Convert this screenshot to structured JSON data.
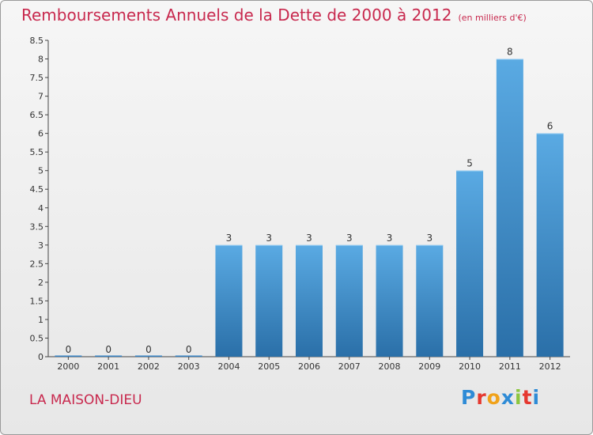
{
  "title": "Remboursements Annuels de la Dette de 2000 à 2012",
  "unit": "(en milliers d'€)",
  "footer": {
    "city": "LA MAISON-DIEU",
    "brand": "Proxiti"
  },
  "colors": {
    "title": "#c8294e",
    "bar_top": "#5aaae3",
    "bar_bottom": "#2a6fa8"
  },
  "chart_data": {
    "type": "bar",
    "title": "Remboursements Annuels de la Dette de 2000 à 2012",
    "subtitle": "(en milliers d'€)",
    "xlabel": "",
    "ylabel": "",
    "categories": [
      "2000",
      "2001",
      "2002",
      "2003",
      "2004",
      "2005",
      "2006",
      "2007",
      "2008",
      "2009",
      "2010",
      "2011",
      "2012"
    ],
    "values": [
      0,
      0,
      0,
      0,
      3,
      3,
      3,
      3,
      3,
      3,
      5,
      8,
      6
    ],
    "data_labels": [
      "0",
      "0",
      "0",
      "0",
      "3",
      "3",
      "3",
      "3",
      "3",
      "3",
      "5",
      "8",
      "6"
    ],
    "ylim": [
      0,
      8.5
    ],
    "yticks": [
      "0",
      "0.5",
      "1",
      "1.5",
      "2",
      "2.5",
      "3",
      "3.5",
      "4",
      "4.5",
      "5",
      "5.5",
      "6",
      "6.5",
      "7",
      "7.5",
      "8",
      "8.5"
    ],
    "grid": false,
    "legend": "none"
  }
}
